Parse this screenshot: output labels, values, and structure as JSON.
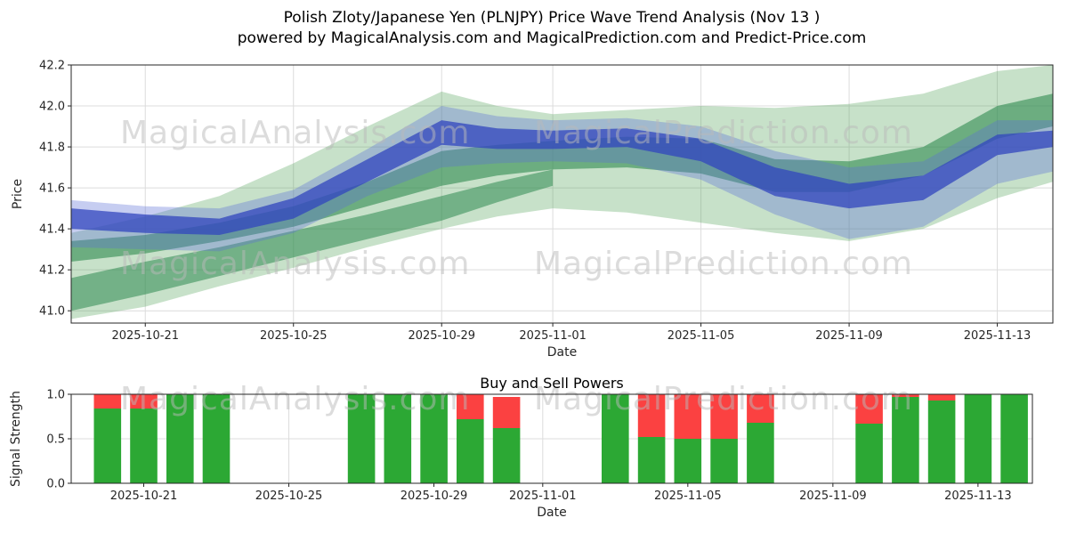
{
  "title": {
    "line1": "Polish Zloty/Japanese Yen (PLNJPY) Price Wave Trend Analysis (Nov 13 )",
    "line2": "powered by MagicalAnalysis.com and MagicalPrediction.com and Predict-Price.com"
  },
  "watermarks": {
    "left": "MagicalAnalysis.com",
    "right": "MagicalPrediction.com",
    "color": "#b9b9b9"
  },
  "chart_data": [
    {
      "type": "area",
      "name": "price-wave",
      "ylabel": "Price",
      "xlabel": "Date",
      "ylim": [
        40.94,
        42.2
      ],
      "yticks": [
        41.0,
        41.2,
        41.4,
        41.6,
        41.8,
        42.0,
        42.2
      ],
      "xlim": [
        0,
        26.5
      ],
      "xtick_days": [
        2,
        6,
        10,
        13,
        17,
        21,
        25
      ],
      "xtick_labels": [
        "2025-10-21",
        "2025-10-25",
        "2025-10-29",
        "2025-11-01",
        "2025-11-05",
        "2025-11-09",
        "2025-11-13"
      ],
      "grid": true,
      "bands": [
        {
          "name": "green-outer-envelope",
          "color": "#52a158",
          "opacity": 0.32,
          "x": [
            0,
            2,
            4,
            6,
            8,
            10,
            11.5,
            13,
            15,
            17,
            19,
            21,
            23,
            25,
            26.5
          ],
          "upper": [
            41.38,
            41.46,
            41.56,
            41.72,
            41.9,
            42.07,
            42.0,
            41.96,
            41.98,
            42.0,
            41.99,
            42.01,
            42.06,
            42.17,
            42.2
          ],
          "lower": [
            40.96,
            41.02,
            41.12,
            41.21,
            41.31,
            41.4,
            41.46,
            41.5,
            41.48,
            41.43,
            41.38,
            41.34,
            41.4,
            41.55,
            41.63
          ]
        },
        {
          "name": "green-lower-band",
          "color": "#2e8b50",
          "opacity": 0.55,
          "x": [
            0,
            2,
            4,
            6,
            8,
            10,
            11.5,
            13
          ],
          "upper": [
            41.16,
            41.24,
            41.31,
            41.39,
            41.47,
            41.56,
            41.63,
            41.69
          ],
          "lower": [
            41.0,
            41.08,
            41.17,
            41.26,
            41.35,
            41.44,
            41.53,
            41.61
          ]
        },
        {
          "name": "green-upper-band",
          "color": "#2e8b50",
          "opacity": 0.6,
          "x": [
            0,
            2,
            4,
            6,
            8,
            10,
            11.5,
            13,
            15,
            17,
            19,
            21,
            23,
            25,
            26.5
          ],
          "upper": [
            41.34,
            41.37,
            41.43,
            41.51,
            41.63,
            41.78,
            41.81,
            41.83,
            41.85,
            41.84,
            41.74,
            41.73,
            41.8,
            42.0,
            42.06
          ],
          "lower": [
            41.24,
            41.28,
            41.34,
            41.41,
            41.51,
            41.61,
            41.66,
            41.69,
            41.7,
            41.67,
            41.58,
            41.58,
            41.66,
            41.84,
            41.9
          ]
        },
        {
          "name": "blue-outer-envelope",
          "color": "#5b6fd8",
          "opacity": 0.35,
          "x": [
            0,
            2,
            4,
            6,
            8,
            10,
            11.5,
            13,
            15,
            17,
            19,
            21,
            23,
            25,
            26.5
          ],
          "upper": [
            41.54,
            41.51,
            41.5,
            41.59,
            41.79,
            42.0,
            41.95,
            41.93,
            41.94,
            41.9,
            41.78,
            41.7,
            41.73,
            41.93,
            41.93
          ],
          "lower": [
            41.31,
            41.3,
            41.29,
            41.38,
            41.56,
            41.7,
            41.72,
            41.73,
            41.72,
            41.64,
            41.47,
            41.35,
            41.41,
            41.62,
            41.68
          ]
        },
        {
          "name": "blue-core-band",
          "color": "#3245bd",
          "opacity": 0.75,
          "x": [
            0,
            2,
            4,
            6,
            8,
            10,
            11.5,
            13,
            15,
            17,
            19,
            21,
            23,
            25,
            26.5
          ],
          "upper": [
            41.5,
            41.47,
            41.45,
            41.55,
            41.74,
            41.93,
            41.89,
            41.88,
            41.89,
            41.84,
            41.7,
            41.62,
            41.66,
            41.86,
            41.88
          ],
          "lower": [
            41.4,
            41.38,
            41.37,
            41.45,
            41.63,
            41.81,
            41.79,
            41.79,
            41.8,
            41.73,
            41.56,
            41.5,
            41.54,
            41.76,
            41.8
          ]
        }
      ]
    },
    {
      "type": "bar",
      "name": "buy-sell-powers",
      "title": "Buy and Sell Powers",
      "ylabel": "Signal Strength",
      "xlabel": "Date",
      "ylim": [
        0,
        1
      ],
      "yticks": [
        0.0,
        0.5,
        1.0
      ],
      "xlim": [
        0,
        26.5
      ],
      "xtick_days": [
        2,
        6,
        10,
        13,
        17,
        21,
        25
      ],
      "xtick_labels": [
        "2025-10-21",
        "2025-10-25",
        "2025-10-29",
        "2025-11-01",
        "2025-11-05",
        "2025-11-09",
        "2025-11-13"
      ],
      "grid": true,
      "bar_width_days": 0.75,
      "buy_color": "#2ca834",
      "sell_color": "#fb4141",
      "bars": [
        {
          "date": "2025-10-20",
          "day": 1,
          "buy": 0.84,
          "sell": 0.16
        },
        {
          "date": "2025-10-21",
          "day": 2,
          "buy": 0.84,
          "sell": 0.16
        },
        {
          "date": "2025-10-22",
          "day": 3,
          "buy": 1.0,
          "sell": 0
        },
        {
          "date": "2025-10-23",
          "day": 4,
          "buy": 1.0,
          "sell": 0
        },
        {
          "date": "2025-10-27",
          "day": 8,
          "buy": 1.0,
          "sell": 0
        },
        {
          "date": "2025-10-28",
          "day": 9,
          "buy": 1.0,
          "sell": 0
        },
        {
          "date": "2025-10-29",
          "day": 10,
          "buy": 1.0,
          "sell": 0
        },
        {
          "date": "2025-10-30",
          "day": 11,
          "buy": 0.72,
          "sell": 0.28
        },
        {
          "date": "2025-10-31",
          "day": 12,
          "buy": 0.62,
          "sell": 0.35
        },
        {
          "date": "2025-11-03",
          "day": 15,
          "buy": 1.0,
          "sell": 0
        },
        {
          "date": "2025-11-04",
          "day": 16,
          "buy": 0.52,
          "sell": 0.48
        },
        {
          "date": "2025-11-05",
          "day": 17,
          "buy": 0.5,
          "sell": 0.5
        },
        {
          "date": "2025-11-06",
          "day": 18,
          "buy": 0.5,
          "sell": 0.5
        },
        {
          "date": "2025-11-07",
          "day": 19,
          "buy": 0.68,
          "sell": 0.32
        },
        {
          "date": "2025-11-10",
          "day": 22,
          "buy": 0.67,
          "sell": 0.33
        },
        {
          "date": "2025-11-11",
          "day": 23,
          "buy": 0.97,
          "sell": 0.03
        },
        {
          "date": "2025-11-12",
          "day": 24,
          "buy": 0.93,
          "sell": 0.07
        },
        {
          "date": "2025-11-13",
          "day": 25,
          "buy": 1.0,
          "sell": 0
        },
        {
          "date": "2025-11-14",
          "day": 26,
          "buy": 1.0,
          "sell": 0
        }
      ]
    }
  ]
}
